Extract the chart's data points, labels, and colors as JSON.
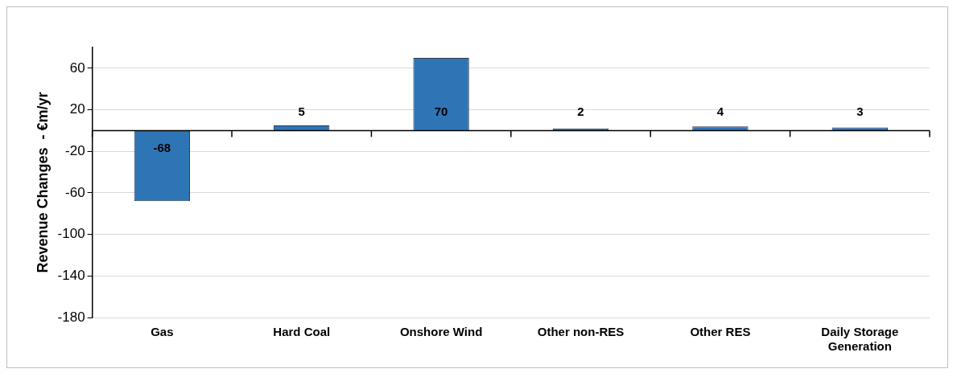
{
  "chart_data": {
    "type": "bar",
    "ylabel": "Revenue Changes  - €m/yr",
    "categories": [
      "Gas",
      "Hard Coal",
      "Onshore Wind",
      "Other non-RES",
      "Other RES",
      "Daily Storage Generation"
    ],
    "values": [
      -68,
      5,
      70,
      2,
      4,
      3
    ],
    "color": "#2e75b6",
    "ylim": [
      -180,
      80
    ],
    "yticks": [
      -180,
      -140,
      -100,
      -60,
      -20,
      20,
      60
    ],
    "grid": "y",
    "data_labels": true,
    "legend": false
  }
}
